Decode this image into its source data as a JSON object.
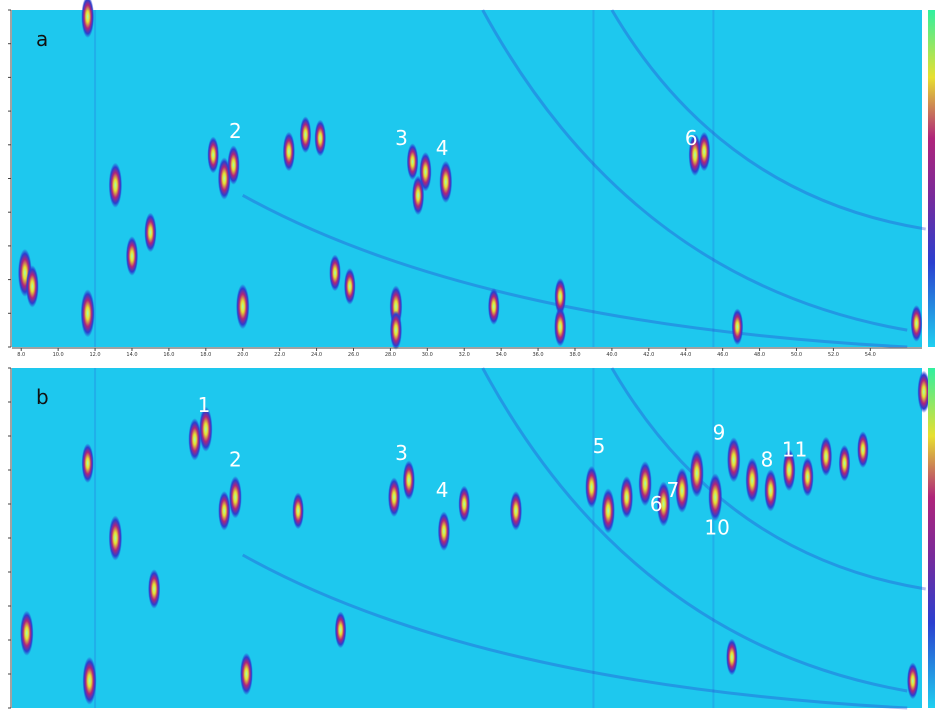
{
  "chart_data": [
    {
      "type": "heatmap",
      "panel_label": "a",
      "colors": {
        "background": "#1ec8ee",
        "low": "#2a3fd0",
        "mid": "#b0247a",
        "high": "#e8e030",
        "peak": "#a0ffb0"
      },
      "x_ticks": [
        "8.0",
        "10.0",
        "12.0",
        "14.0",
        "16.0",
        "18.0",
        "20.0",
        "22.0",
        "24.0",
        "26.0",
        "28.0",
        "30.0",
        "32.0",
        "34.0",
        "36.0",
        "38.0",
        "40.0",
        "42.0",
        "44.0",
        "46.0",
        "48.0",
        "50.0",
        "52.0",
        "54.0"
      ],
      "peak_labels": [
        {
          "label": "2",
          "x": 19.6,
          "y": 0.62
        },
        {
          "label": "3",
          "x": 28.6,
          "y": 0.6
        },
        {
          "label": "4",
          "x": 30.8,
          "y": 0.57
        },
        {
          "label": "6",
          "x": 44.3,
          "y": 0.6
        }
      ],
      "spots": [
        {
          "x": 8.2,
          "y": 0.22,
          "i": 1.0
        },
        {
          "x": 8.6,
          "y": 0.18,
          "i": 0.8
        },
        {
          "x": 11.6,
          "y": 0.1,
          "i": 1.0
        },
        {
          "x": 11.6,
          "y": 0.98,
          "i": 0.8
        },
        {
          "x": 13.1,
          "y": 0.48,
          "i": 0.9
        },
        {
          "x": 14.0,
          "y": 0.27,
          "i": 0.7
        },
        {
          "x": 15.0,
          "y": 0.34,
          "i": 0.7
        },
        {
          "x": 18.4,
          "y": 0.57,
          "i": 0.6
        },
        {
          "x": 19.0,
          "y": 0.5,
          "i": 0.8
        },
        {
          "x": 19.5,
          "y": 0.54,
          "i": 0.7
        },
        {
          "x": 20.0,
          "y": 0.12,
          "i": 0.9
        },
        {
          "x": 22.5,
          "y": 0.58,
          "i": 0.7
        },
        {
          "x": 23.4,
          "y": 0.63,
          "i": 0.6
        },
        {
          "x": 24.2,
          "y": 0.62,
          "i": 0.6
        },
        {
          "x": 25.0,
          "y": 0.22,
          "i": 0.6
        },
        {
          "x": 25.8,
          "y": 0.18,
          "i": 0.6
        },
        {
          "x": 28.3,
          "y": 0.12,
          "i": 0.8
        },
        {
          "x": 28.3,
          "y": 0.05,
          "i": 0.7
        },
        {
          "x": 29.2,
          "y": 0.55,
          "i": 0.6
        },
        {
          "x": 29.9,
          "y": 0.52,
          "i": 0.7
        },
        {
          "x": 29.5,
          "y": 0.45,
          "i": 0.7
        },
        {
          "x": 31.0,
          "y": 0.49,
          "i": 0.8
        },
        {
          "x": 33.6,
          "y": 0.12,
          "i": 0.6
        },
        {
          "x": 37.2,
          "y": 0.15,
          "i": 0.6
        },
        {
          "x": 37.2,
          "y": 0.06,
          "i": 0.7
        },
        {
          "x": 44.5,
          "y": 0.57,
          "i": 0.8
        },
        {
          "x": 45.0,
          "y": 0.58,
          "i": 0.7
        },
        {
          "x": 46.8,
          "y": 0.06,
          "i": 0.6
        },
        {
          "x": 56.5,
          "y": 0.07,
          "i": 0.6
        }
      ]
    },
    {
      "type": "heatmap",
      "panel_label": "b",
      "colors": {
        "background": "#1ec8ee",
        "low": "#2a3fd0",
        "mid": "#b0247a",
        "high": "#e8e030",
        "peak": "#a0ffb0"
      },
      "peak_labels": [
        {
          "label": "1",
          "x": 17.9,
          "y": 0.87
        },
        {
          "label": "2",
          "x": 19.6,
          "y": 0.71
        },
        {
          "label": "3",
          "x": 28.6,
          "y": 0.73
        },
        {
          "label": "4",
          "x": 30.8,
          "y": 0.62
        },
        {
          "label": "5",
          "x": 39.3,
          "y": 0.75
        },
        {
          "label": "6",
          "x": 42.4,
          "y": 0.58
        },
        {
          "label": "7",
          "x": 43.3,
          "y": 0.62
        },
        {
          "label": "8",
          "x": 48.4,
          "y": 0.71
        },
        {
          "label": "9",
          "x": 45.8,
          "y": 0.79
        },
        {
          "label": "10",
          "x": 45.7,
          "y": 0.51
        },
        {
          "label": "11",
          "x": 49.9,
          "y": 0.74
        }
      ],
      "spots": [
        {
          "x": 8.3,
          "y": 0.22,
          "i": 0.9
        },
        {
          "x": 11.7,
          "y": 0.08,
          "i": 1.0
        },
        {
          "x": 11.6,
          "y": 0.72,
          "i": 0.7
        },
        {
          "x": 13.1,
          "y": 0.5,
          "i": 0.9
        },
        {
          "x": 15.2,
          "y": 0.35,
          "i": 0.7
        },
        {
          "x": 17.4,
          "y": 0.79,
          "i": 0.8
        },
        {
          "x": 18.0,
          "y": 0.82,
          "i": 0.9
        },
        {
          "x": 19.0,
          "y": 0.58,
          "i": 0.7
        },
        {
          "x": 19.6,
          "y": 0.62,
          "i": 0.8
        },
        {
          "x": 20.2,
          "y": 0.1,
          "i": 0.8
        },
        {
          "x": 23.0,
          "y": 0.58,
          "i": 0.6
        },
        {
          "x": 25.3,
          "y": 0.23,
          "i": 0.6
        },
        {
          "x": 28.2,
          "y": 0.62,
          "i": 0.7
        },
        {
          "x": 29.0,
          "y": 0.67,
          "i": 0.7
        },
        {
          "x": 30.9,
          "y": 0.52,
          "i": 0.7
        },
        {
          "x": 32.0,
          "y": 0.6,
          "i": 0.6
        },
        {
          "x": 34.8,
          "y": 0.58,
          "i": 0.7
        },
        {
          "x": 38.9,
          "y": 0.65,
          "i": 0.8
        },
        {
          "x": 39.8,
          "y": 0.58,
          "i": 0.9
        },
        {
          "x": 40.8,
          "y": 0.62,
          "i": 0.8
        },
        {
          "x": 41.8,
          "y": 0.66,
          "i": 0.9
        },
        {
          "x": 42.8,
          "y": 0.6,
          "i": 0.9
        },
        {
          "x": 43.8,
          "y": 0.64,
          "i": 0.9
        },
        {
          "x": 44.6,
          "y": 0.69,
          "i": 1.0
        },
        {
          "x": 45.6,
          "y": 0.62,
          "i": 1.0
        },
        {
          "x": 46.6,
          "y": 0.73,
          "i": 0.9
        },
        {
          "x": 47.6,
          "y": 0.67,
          "i": 0.9
        },
        {
          "x": 48.6,
          "y": 0.64,
          "i": 0.8
        },
        {
          "x": 49.6,
          "y": 0.7,
          "i": 0.8
        },
        {
          "x": 50.6,
          "y": 0.68,
          "i": 0.7
        },
        {
          "x": 51.6,
          "y": 0.74,
          "i": 0.7
        },
        {
          "x": 52.6,
          "y": 0.72,
          "i": 0.6
        },
        {
          "x": 53.6,
          "y": 0.76,
          "i": 0.6
        },
        {
          "x": 56.9,
          "y": 0.93,
          "i": 0.8
        },
        {
          "x": 46.5,
          "y": 0.15,
          "i": 0.6
        },
        {
          "x": 56.3,
          "y": 0.08,
          "i": 0.6
        }
      ]
    }
  ]
}
